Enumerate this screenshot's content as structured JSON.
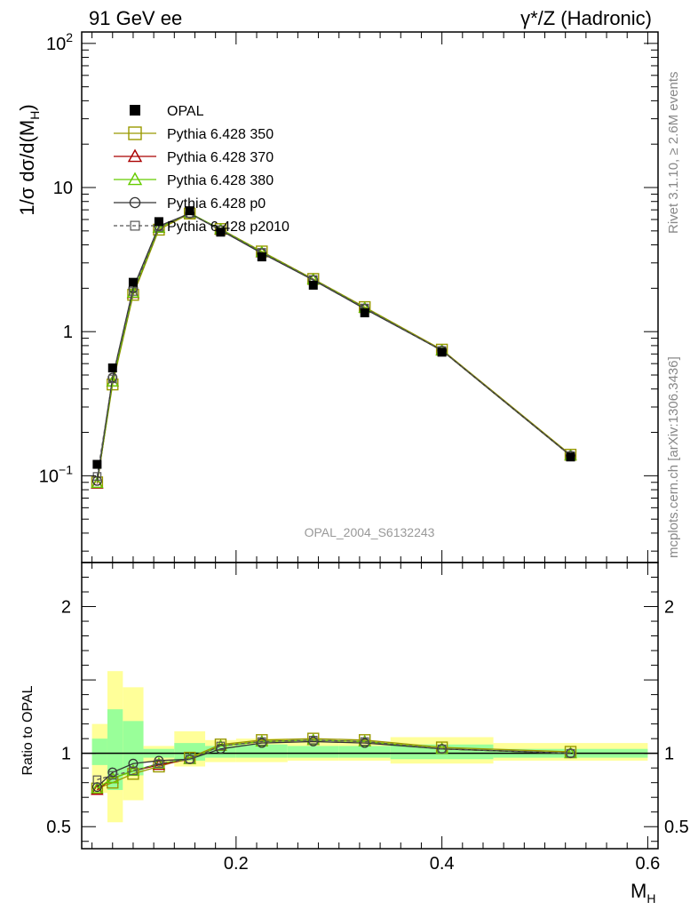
{
  "header": {
    "left": "91 GeV ee",
    "right": "γ*/Z (Hadronic)"
  },
  "side_text": {
    "rivet": "Rivet 3.1.10, ≥ 2.6M events",
    "mcplots": "mcplots.cern.ch [arXiv:1306.3436]"
  },
  "watermark": "OPAL_2004_S6132243",
  "chart_data": {
    "type": "line",
    "title": "91 GeV ee",
    "subtitle": "γ*/Z (Hadronic)",
    "xlabel": "M_H",
    "xlim": [
      0.05,
      0.61
    ],
    "x_ticks": [
      "0.2",
      "0.4",
      "0.6"
    ],
    "x": [
      0.065,
      0.08,
      0.1,
      0.125,
      0.155,
      0.185,
      0.225,
      0.275,
      0.325,
      0.4,
      0.525
    ],
    "main": {
      "ylabel": "1/σ dσ/d(M_H)",
      "ylim": [
        0.025,
        120
      ],
      "log_y": true,
      "y_ticks": [
        "10^−1",
        "1",
        "10",
        "10^2"
      ],
      "data": {
        "name": "OPAL",
        "values": [
          0.12,
          0.56,
          2.2,
          5.8,
          6.9,
          4.9,
          3.3,
          2.1,
          1.35,
          0.72,
          0.135
        ]
      },
      "series": [
        {
          "name": "Pythia 6.428 350",
          "color": "#999900",
          "marker": "square-open",
          "values": [
            0.09,
            0.43,
            1.8,
            5.1,
            6.6,
            5.15,
            3.6,
            2.32,
            1.48,
            0.75,
            0.14
          ]
        },
        {
          "name": "Pythia 6.428 370",
          "color": "#aa0000",
          "marker": "triangle-open",
          "values": [
            0.088,
            0.45,
            1.85,
            5.25,
            6.65,
            5.1,
            3.55,
            2.3,
            1.46,
            0.74,
            0.138
          ]
        },
        {
          "name": "Pythia 6.428 380",
          "color": "#66cc00",
          "marker": "triangle-open",
          "values": [
            0.089,
            0.45,
            1.86,
            5.25,
            6.65,
            5.12,
            3.56,
            2.3,
            1.46,
            0.74,
            0.138
          ]
        },
        {
          "name": "Pythia 6.428 p0",
          "color": "#333333",
          "marker": "circle-open",
          "values": [
            0.092,
            0.48,
            2.0,
            5.4,
            6.6,
            5.05,
            3.5,
            2.28,
            1.44,
            0.74,
            0.138
          ]
        },
        {
          "name": "Pythia 6.428 p2010",
          "color": "#555555",
          "marker": "square-small",
          "dashed": true,
          "values": [
            0.099,
            0.47,
            1.9,
            5.3,
            6.6,
            5.1,
            3.55,
            2.3,
            1.46,
            0.74,
            0.138
          ]
        }
      ]
    },
    "ratio": {
      "ylabel": "Ratio to OPAL",
      "ylim": [
        0.35,
        2.3
      ],
      "y_ticks": [
        "0.5",
        "1",
        "2"
      ],
      "bands": [
        {
          "x0": 0.06,
          "x1": 0.075,
          "inner": [
            0.92,
            1.1
          ],
          "outer": [
            0.73,
            1.2
          ]
        },
        {
          "x0": 0.075,
          "x1": 0.09,
          "inner": [
            0.75,
            1.3
          ],
          "outer": [
            0.53,
            1.56
          ]
        },
        {
          "x0": 0.09,
          "x1": 0.11,
          "inner": [
            0.85,
            1.22
          ],
          "outer": [
            0.68,
            1.45
          ]
        },
        {
          "x0": 0.11,
          "x1": 0.14,
          "inner": [
            0.97,
            1.03
          ],
          "outer": [
            0.94,
            1.05
          ]
        },
        {
          "x0": 0.14,
          "x1": 0.17,
          "inner": [
            0.95,
            1.07
          ],
          "outer": [
            0.91,
            1.15
          ]
        },
        {
          "x0": 0.17,
          "x1": 0.2,
          "inner": [
            0.97,
            1.05
          ],
          "outer": [
            0.94,
            1.09
          ]
        },
        {
          "x0": 0.2,
          "x1": 0.25,
          "inner": [
            0.97,
            1.06
          ],
          "outer": [
            0.94,
            1.1
          ]
        },
        {
          "x0": 0.25,
          "x1": 0.3,
          "inner": [
            0.97,
            1.05
          ],
          "outer": [
            0.95,
            1.08
          ]
        },
        {
          "x0": 0.3,
          "x1": 0.35,
          "inner": [
            0.97,
            1.05
          ],
          "outer": [
            0.95,
            1.08
          ]
        },
        {
          "x0": 0.35,
          "x1": 0.45,
          "inner": [
            0.96,
            1.06
          ],
          "outer": [
            0.93,
            1.11
          ]
        },
        {
          "x0": 0.45,
          "x1": 0.6,
          "inner": [
            0.97,
            1.03
          ],
          "outer": [
            0.95,
            1.07
          ]
        }
      ],
      "series": [
        {
          "name": "Pythia 6.428 350",
          "values": [
            0.76,
            0.8,
            0.86,
            0.91,
            0.97,
            1.06,
            1.09,
            1.1,
            1.09,
            1.04,
            1.01
          ]
        },
        {
          "name": "Pythia 6.428 370",
          "values": [
            0.75,
            0.83,
            0.88,
            0.92,
            0.96,
            1.05,
            1.08,
            1.09,
            1.08,
            1.03,
            1.0
          ]
        },
        {
          "name": "Pythia 6.428 380",
          "values": [
            0.76,
            0.83,
            0.88,
            0.93,
            0.96,
            1.05,
            1.08,
            1.09,
            1.08,
            1.03,
            1.0
          ]
        },
        {
          "name": "Pythia 6.428 p0",
          "values": [
            0.77,
            0.87,
            0.93,
            0.95,
            0.96,
            1.03,
            1.07,
            1.08,
            1.07,
            1.03,
            1.0
          ]
        },
        {
          "name": "Pythia 6.428 p2010",
          "values": [
            0.82,
            0.85,
            0.88,
            0.93,
            0.96,
            1.05,
            1.08,
            1.09,
            1.08,
            1.03,
            1.0
          ]
        }
      ]
    }
  }
}
